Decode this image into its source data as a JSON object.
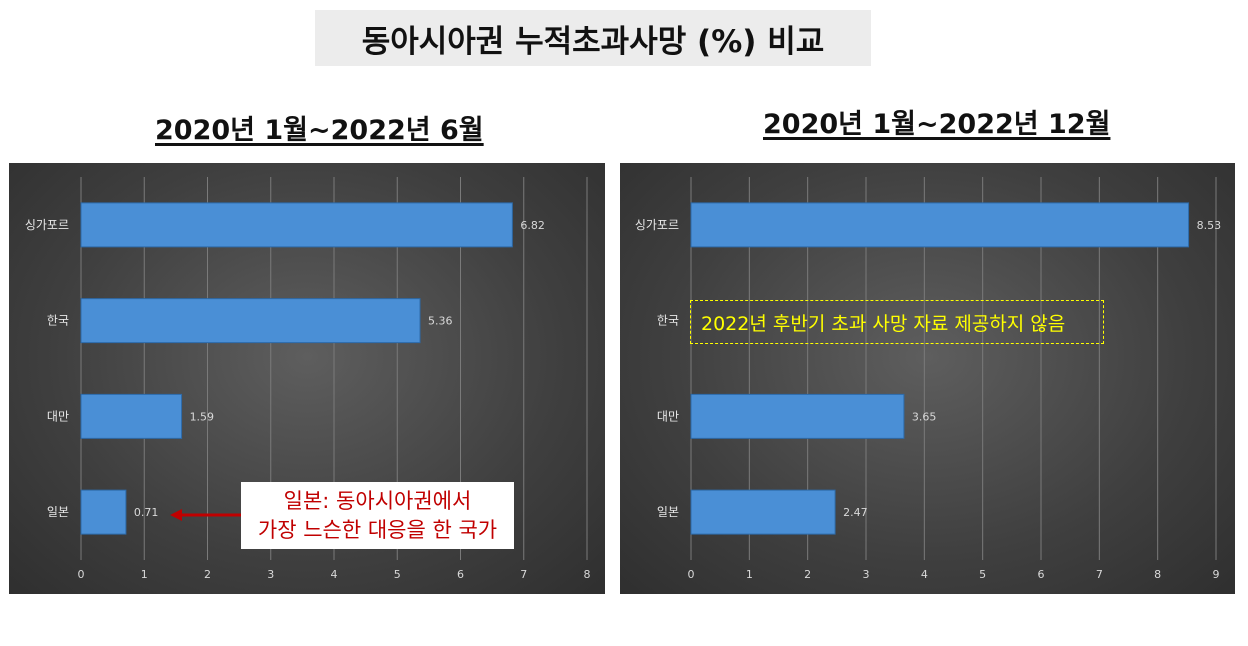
{
  "page": {
    "main_title": "동아시아권 누적초과사망 (%) 비교",
    "left_period": "2020년 1월~2022년 6월",
    "right_period": "2020년 1월~2022년 12월",
    "callout": {
      "line1": "일본: 동아시아권에서",
      "line2": "가장 느슨한 대응을 한 국가"
    },
    "no_data_note": "2022년 후반기 초과 사망 자료 제공하지 않음"
  },
  "colors": {
    "bar": "#4a8fd6",
    "panel": "#444444",
    "callout_text": "#c00000",
    "arrow": "#c00000",
    "note": "#ffff00"
  },
  "chart_data": [
    {
      "type": "bar",
      "orientation": "horizontal",
      "title": "2020년 1월~2022년 6월",
      "categories": [
        "싱가포르",
        "한국",
        "대만",
        "일본"
      ],
      "values": [
        6.82,
        5.36,
        1.59,
        0.71
      ],
      "value_labels": [
        "6.82",
        "5.36",
        "1.59",
        "0.71"
      ],
      "xlim": [
        0,
        8
      ],
      "xticks": [
        0,
        1,
        2,
        3,
        4,
        5,
        6,
        7,
        8
      ],
      "grid": true
    },
    {
      "type": "bar",
      "orientation": "horizontal",
      "title": "2020년 1월~2022년 12월",
      "categories": [
        "싱가포르",
        "한국",
        "대만",
        "일본"
      ],
      "values": [
        8.53,
        null,
        3.65,
        2.47
      ],
      "value_labels": [
        "8.53",
        "",
        "3.65",
        "2.47"
      ],
      "xlim": [
        0,
        9
      ],
      "xticks": [
        0,
        1,
        2,
        3,
        4,
        5,
        6,
        7,
        8,
        9
      ],
      "grid": true
    }
  ]
}
